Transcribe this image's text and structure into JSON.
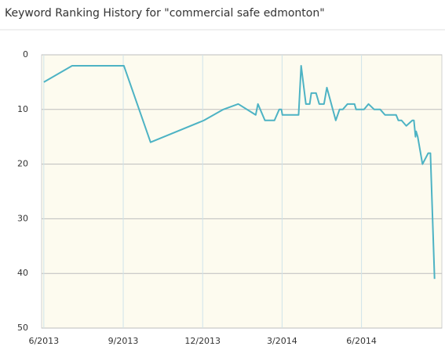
{
  "chart_data": {
    "type": "line",
    "title": "Keyword Ranking History for \"commercial safe edmonton\"",
    "x": [
      2013.417,
      2013.506,
      2013.669,
      2013.753,
      2013.921,
      2013.982,
      2014.029,
      2014.084,
      2014.091,
      2014.113,
      2014.143,
      2014.158,
      2014.165,
      2014.168,
      2014.219,
      2014.227,
      2014.242,
      2014.254,
      2014.259,
      2014.274,
      2014.284,
      2014.299,
      2014.308,
      2014.336,
      2014.348,
      2014.358,
      2014.373,
      2014.395,
      2014.4,
      2014.425,
      2014.439,
      2014.457,
      2014.476,
      2014.491,
      2014.526,
      2014.533,
      2014.543,
      2014.558,
      2014.577,
      2014.582,
      2014.587,
      2014.589,
      2014.594,
      2014.609,
      2014.627,
      2014.634,
      2014.647
    ],
    "series": [
      {
        "color": "#4db3c4",
        "values": [
          5,
          2,
          2,
          16,
          12,
          10,
          9,
          11,
          9,
          12,
          12,
          10,
          10,
          11,
          11,
          2,
          9,
          9,
          7,
          7,
          9,
          9,
          6,
          12,
          10,
          10,
          9,
          9,
          10,
          10,
          9,
          10,
          10,
          11,
          11,
          12,
          12,
          13,
          12,
          12,
          15,
          14,
          15,
          20,
          18,
          18,
          41
        ]
      }
    ],
    "xlim": [
      2013.41,
      2014.67
    ],
    "xticks": [
      {
        "value": 2013.417,
        "label": "6/2013"
      },
      {
        "value": 2013.667,
        "label": "9/2013"
      },
      {
        "value": 2013.917,
        "label": "12/2013"
      },
      {
        "value": 2014.167,
        "label": "3/2014"
      },
      {
        "value": 2014.417,
        "label": "6/2014"
      }
    ],
    "ylim": [
      0,
      50
    ],
    "yticks": [
      0,
      10,
      20,
      30,
      40,
      50
    ],
    "y_inverted": true,
    "grid": true
  }
}
